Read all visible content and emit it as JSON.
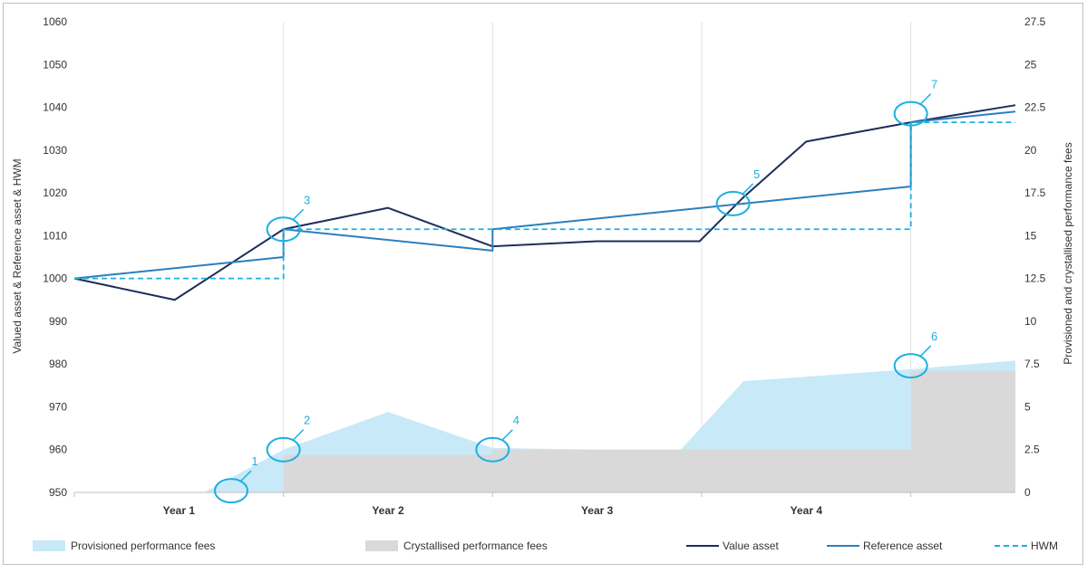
{
  "chart_data": {
    "type": "line",
    "categories": [
      "Year 1",
      "Year 2",
      "Year 3",
      "Year 4"
    ],
    "x_range": [
      0,
      4.5
    ],
    "left_axis": {
      "label": "Valued asset & Reference asset & HWM",
      "range": [
        950,
        1060
      ],
      "ticks": [
        950,
        960,
        970,
        980,
        990,
        1000,
        1010,
        1020,
        1030,
        1040,
        1050,
        1060
      ]
    },
    "right_axis": {
      "label": "Provisioned and crystallised performance fees",
      "range": [
        0,
        27.5
      ],
      "ticks": [
        "0",
        "2.5",
        "5",
        "7.5",
        "10",
        "12.5",
        "15",
        "17.5",
        "20",
        "22.5",
        "25",
        "27.5"
      ],
      "tick_values": [
        0,
        2.5,
        5,
        7.5,
        10,
        12.5,
        15,
        17.5,
        20,
        22.5,
        25,
        27.5
      ]
    },
    "grid": "vertical",
    "legend_position": "bottom",
    "series": [
      {
        "name": "Provisioned performance fees",
        "kind": "area",
        "axis": "right",
        "color": "#c8e9f8",
        "points": [
          [
            0.62,
            0
          ],
          [
            1.0,
            2.5
          ],
          [
            1.5,
            4.7
          ],
          [
            2.0,
            2.6
          ],
          [
            2.5,
            2.5
          ],
          [
            2.9,
            2.5
          ],
          [
            3.2,
            6.5
          ],
          [
            4.0,
            7.2
          ],
          [
            4.5,
            7.7
          ]
        ]
      },
      {
        "name": "Crystallised performance fees",
        "kind": "area",
        "axis": "right",
        "color": "#d9d9d9",
        "points": [
          [
            1.0,
            0
          ],
          [
            1.0,
            2.2
          ],
          [
            2.0,
            2.2
          ],
          [
            2.0,
            2.5
          ],
          [
            4.0,
            2.5
          ],
          [
            4.0,
            7.1
          ],
          [
            4.5,
            7.1
          ]
        ]
      },
      {
        "name": "Value asset",
        "kind": "line",
        "axis": "left",
        "color": "#1f2d5a",
        "dash": false,
        "points": [
          [
            0,
            1000
          ],
          [
            0.48,
            995
          ],
          [
            1.0,
            1011.5
          ],
          [
            1.5,
            1016.5
          ],
          [
            2.0,
            1007.5
          ],
          [
            2.5,
            1008.7
          ],
          [
            2.99,
            1008.7
          ],
          [
            3.2,
            1019
          ],
          [
            3.5,
            1032
          ],
          [
            4.0,
            1036.5
          ],
          [
            4.5,
            1040.5
          ]
        ]
      },
      {
        "name": "Reference asset",
        "kind": "line",
        "axis": "left",
        "color": "#2a7fc0",
        "dash": false,
        "points": [
          [
            0,
            1000
          ],
          [
            1.0,
            1005
          ],
          [
            1.0,
            1011.5
          ],
          [
            2.0,
            1006.5
          ],
          [
            2.0,
            1011.5
          ],
          [
            4.0,
            1021.5
          ],
          [
            4.0,
            1036.5
          ],
          [
            4.5,
            1039
          ]
        ]
      },
      {
        "name": "HWM",
        "kind": "line",
        "axis": "left",
        "color": "#1ab0e0",
        "dash": true,
        "points": [
          [
            0,
            1000
          ],
          [
            1.0,
            1000
          ],
          [
            1.0,
            1011.5
          ],
          [
            4.0,
            1011.5
          ],
          [
            4.0,
            1036.5
          ],
          [
            4.5,
            1036.5
          ]
        ]
      }
    ],
    "annotations": [
      {
        "label": "1",
        "axis": "right",
        "x": 0.75,
        "y": 0.1
      },
      {
        "label": "2",
        "axis": "right",
        "x": 1.0,
        "y": 2.5
      },
      {
        "label": "3",
        "axis": "left",
        "x": 1.0,
        "y": 1011.5
      },
      {
        "label": "4",
        "axis": "right",
        "x": 2.0,
        "y": 2.5
      },
      {
        "label": "5",
        "axis": "left",
        "x": 3.15,
        "y": 1017.5
      },
      {
        "label": "6",
        "axis": "right",
        "x": 4.0,
        "y": 7.4
      },
      {
        "label": "7",
        "axis": "left",
        "x": 4.0,
        "y": 1038.5
      }
    ]
  }
}
